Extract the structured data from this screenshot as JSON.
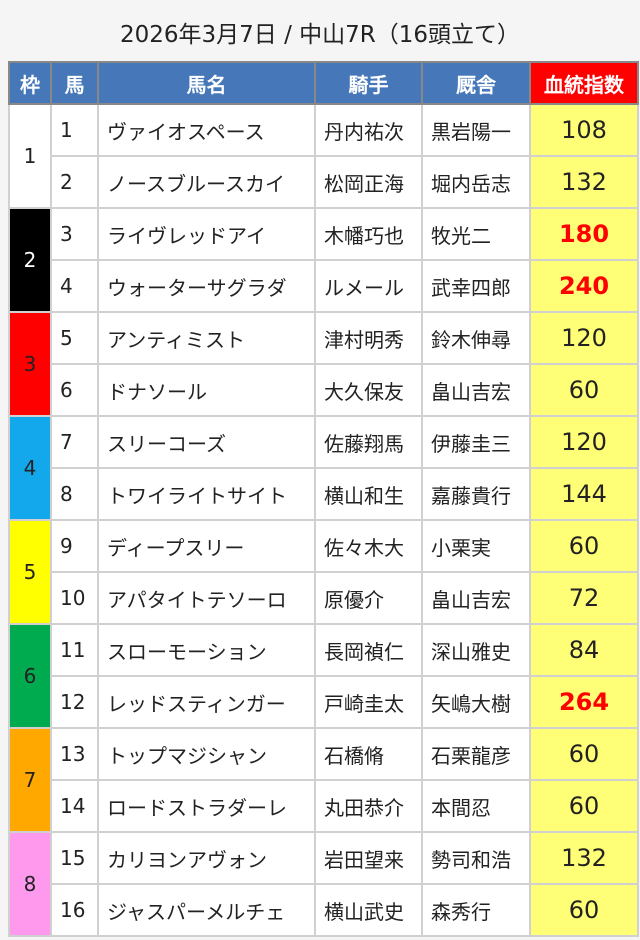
{
  "title": "2026年3月7日 / 中山7R（16頭立て）",
  "headers": {
    "waku": "枠",
    "uma": "馬",
    "name": "馬名",
    "jockey": "騎手",
    "trainer": "厩舎",
    "index": "血統指数"
  },
  "colors": {
    "header": "#4577b9",
    "index_header": "#ff0000",
    "index_cell": "#ffff77",
    "highlight_text": "#ff0000"
  },
  "waku": [
    {
      "label": "1",
      "bg": "#ffffff",
      "fg": "#222222"
    },
    {
      "label": "2",
      "bg": "#000000",
      "fg": "#ffffff"
    },
    {
      "label": "3",
      "bg": "#ff0000",
      "fg": "#222222"
    },
    {
      "label": "4",
      "bg": "#13a7eb",
      "fg": "#222222"
    },
    {
      "label": "5",
      "bg": "#ffff00",
      "fg": "#222222"
    },
    {
      "label": "6",
      "bg": "#00aa4f",
      "fg": "#222222"
    },
    {
      "label": "7",
      "bg": "#ffa800",
      "fg": "#222222"
    },
    {
      "label": "8",
      "bg": "#ff99ee",
      "fg": "#222222"
    }
  ],
  "rows": [
    {
      "num": "1",
      "name": "ヴァイオスペース",
      "jockey": "丹内祐次",
      "trainer": "黒岩陽一",
      "index": "108",
      "highlight": false
    },
    {
      "num": "2",
      "name": "ノースブルースカイ",
      "jockey": "松岡正海",
      "trainer": "堀内岳志",
      "index": "132",
      "highlight": false
    },
    {
      "num": "3",
      "name": "ライヴレッドアイ",
      "jockey": "木幡巧也",
      "trainer": "牧光二",
      "index": "180",
      "highlight": true
    },
    {
      "num": "4",
      "name": "ウォーターサグラダ",
      "jockey": "ルメール",
      "trainer": "武幸四郎",
      "index": "240",
      "highlight": true
    },
    {
      "num": "5",
      "name": "アンティミスト",
      "jockey": "津村明秀",
      "trainer": "鈴木伸尋",
      "index": "120",
      "highlight": false
    },
    {
      "num": "6",
      "name": "ドナソール",
      "jockey": "大久保友",
      "trainer": "畠山吉宏",
      "index": "60",
      "highlight": false
    },
    {
      "num": "7",
      "name": "スリーコーズ",
      "jockey": "佐藤翔馬",
      "trainer": "伊藤圭三",
      "index": "120",
      "highlight": false
    },
    {
      "num": "8",
      "name": "トワイライトサイト",
      "jockey": "横山和生",
      "trainer": "嘉藤貴行",
      "index": "144",
      "highlight": false
    },
    {
      "num": "9",
      "name": "ディープスリー",
      "jockey": "佐々木大",
      "trainer": "小栗実",
      "index": "60",
      "highlight": false
    },
    {
      "num": "10",
      "name": "アパタイトテソーロ",
      "jockey": "原優介",
      "trainer": "畠山吉宏",
      "index": "72",
      "highlight": false
    },
    {
      "num": "11",
      "name": "スローモーション",
      "jockey": "長岡禎仁",
      "trainer": "深山雅史",
      "index": "84",
      "highlight": false
    },
    {
      "num": "12",
      "name": "レッドスティンガー",
      "jockey": "戸崎圭太",
      "trainer": "矢嶋大樹",
      "index": "264",
      "highlight": true
    },
    {
      "num": "13",
      "name": "トップマジシャン",
      "jockey": "石橋脩",
      "trainer": "石栗龍彦",
      "index": "60",
      "highlight": false
    },
    {
      "num": "14",
      "name": "ロードストラダーレ",
      "jockey": "丸田恭介",
      "trainer": "本間忍",
      "index": "60",
      "highlight": false
    },
    {
      "num": "15",
      "name": "カリヨンアヴォン",
      "jockey": "岩田望来",
      "trainer": "勢司和浩",
      "index": "132",
      "highlight": false
    },
    {
      "num": "16",
      "name": "ジャスパーメルチェ",
      "jockey": "横山武史",
      "trainer": "森秀行",
      "index": "60",
      "highlight": false
    }
  ]
}
